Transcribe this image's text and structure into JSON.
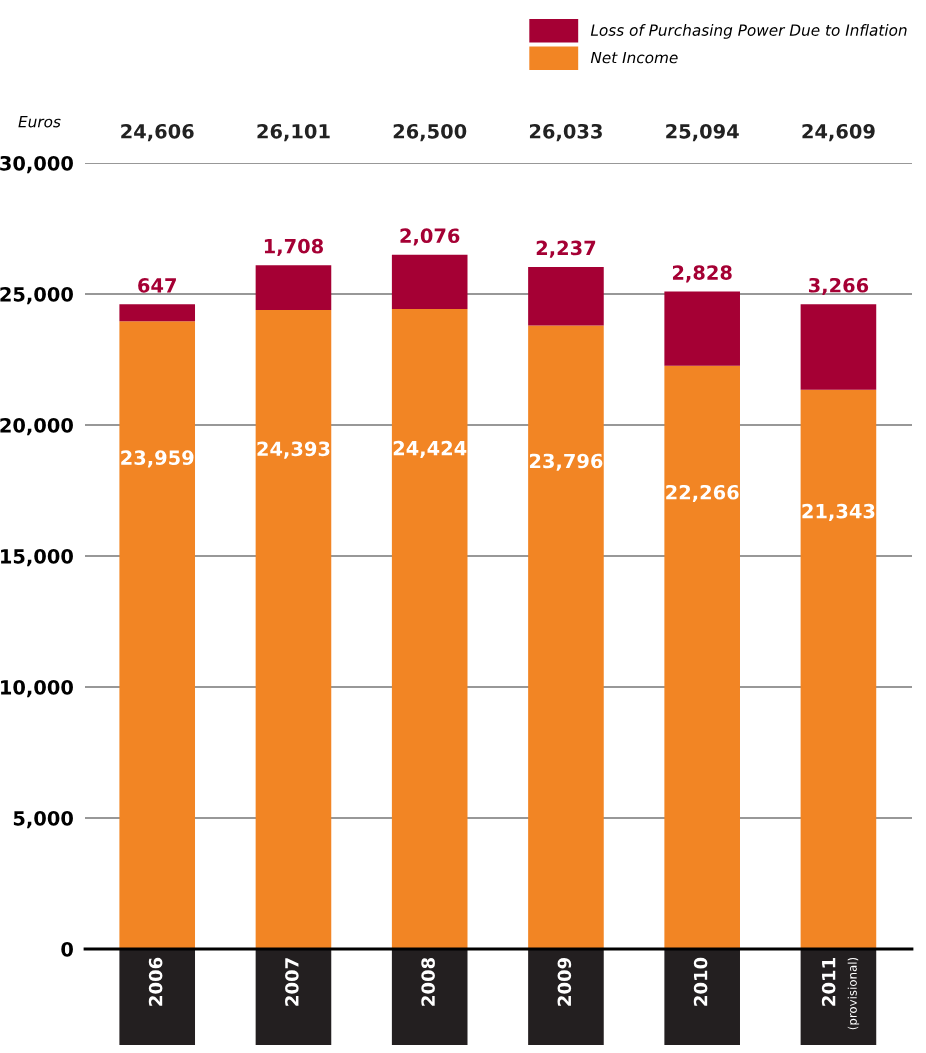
{
  "chart_data": {
    "type": "bar",
    "stacked": true,
    "ylabel": "Euros",
    "categories": [
      "2006",
      "2007",
      "2008",
      "2009",
      "2010",
      "2011\n(provisional)"
    ],
    "series": [
      {
        "name": "Net Income",
        "color": "#f28524",
        "values": [
          23959,
          24393,
          24424,
          23796,
          22266,
          21343
        ],
        "value_labels": [
          "23,959",
          "24,393",
          "24,424",
          "23,796",
          "22,266",
          "21,343"
        ]
      },
      {
        "name": "Loss of Purchasing Power Due to Inflation",
        "color": "#a50034",
        "values": [
          647,
          1708,
          2076,
          2237,
          2828,
          3266
        ],
        "value_labels": [
          "647",
          "1,708",
          "2,076",
          "2,237",
          "2,828",
          "3,266"
        ]
      }
    ],
    "annotations": [
      "24,606",
      "26,101",
      "26,500",
      "26,033",
      "25,094",
      "24,609"
    ],
    "ylim": [
      0,
      30000
    ],
    "yticks": [
      {
        "value": 0,
        "label": "0"
      },
      {
        "value": 5000,
        "label": "5,000"
      },
      {
        "value": 10000,
        "label": "10,000"
      },
      {
        "value": 15000,
        "label": "15,000"
      },
      {
        "value": 20000,
        "label": "20,000"
      },
      {
        "value": 25000,
        "label": "25,000"
      },
      {
        "value": 30000,
        "label": "30,000"
      }
    ],
    "grid": "y",
    "legend": "top right"
  }
}
